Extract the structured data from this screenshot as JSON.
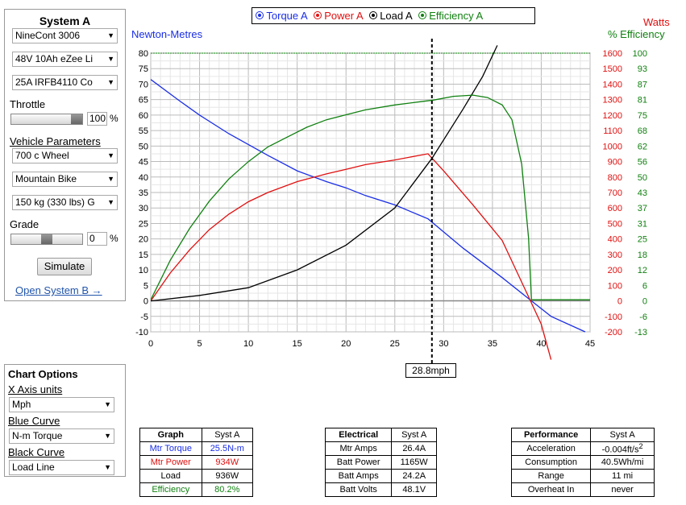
{
  "system_a": {
    "title": "System A",
    "controller": "NineCont 3006",
    "battery": "48V 10Ah eZee Li",
    "motor": "25A IRFB4110 Co",
    "throttle_label": "Throttle",
    "throttle_value": "100",
    "throttle_level": 1.0,
    "percent_sign": "%",
    "vehicle_label": "Vehicle Parameters",
    "wheel": "700 c  Wheel",
    "bike_type": "Mountain Bike",
    "weight": "150 kg (330 lbs) G",
    "grade_label": "Grade",
    "grade_value": "0",
    "grade_level": 0.5,
    "simulate_label": "Simulate",
    "open_b_label": "Open System B →"
  },
  "chart_options": {
    "title": "Chart Options",
    "x_axis_label": "X Axis units",
    "x_axis_value": "Mph",
    "blue_label": "Blue Curve",
    "blue_value": "N-m Torque",
    "black_label": "Black Curve",
    "black_value": "Load Line"
  },
  "legend": {
    "torque": "Torque A",
    "power": "Power A",
    "load": "Load A",
    "efficiency": "Efficiency A"
  },
  "axes": {
    "left_title": "Newton-Metres",
    "right_title_watts": "Watts",
    "right_title_eff": "% Efficiency",
    "x_readout": "28.8mph"
  },
  "colors": {
    "torque": "#1a2ee6",
    "power": "#e01010",
    "load": "#000000",
    "efficiency": "#108010"
  },
  "chart_data": {
    "type": "line",
    "x_unit": "mph",
    "xlim": [
      0,
      45
    ],
    "x_ticks": [
      0,
      5,
      10,
      15,
      20,
      25,
      30,
      35,
      40,
      45
    ],
    "y_left_lim": [
      -10,
      80
    ],
    "y_left_ticks": [
      80,
      75,
      70,
      65,
      60,
      55,
      50,
      45,
      40,
      35,
      30,
      25,
      20,
      15,
      10,
      5,
      0,
      -5,
      -10
    ],
    "y_watts_ticks": [
      1600,
      1500,
      1400,
      1300,
      1200,
      1100,
      1000,
      900,
      800,
      700,
      600,
      500,
      400,
      300,
      200,
      100,
      0,
      -100,
      -200
    ],
    "y_eff_ticks": [
      100,
      93,
      87,
      81,
      75,
      68,
      62,
      56,
      50,
      43,
      37,
      31,
      25,
      18,
      12,
      6,
      0,
      -6,
      -13
    ],
    "cursor_x": 28.8,
    "grid": true,
    "series": [
      {
        "name": "Torque A",
        "axis": "nm",
        "color": "#1a2ee6",
        "points": [
          [
            0,
            71.5
          ],
          [
            3,
            64.5
          ],
          [
            5,
            60
          ],
          [
            8,
            54
          ],
          [
            10,
            50.5
          ],
          [
            12,
            47
          ],
          [
            15,
            42
          ],
          [
            18,
            38.5
          ],
          [
            20,
            36.5
          ],
          [
            22,
            34
          ],
          [
            25,
            31
          ],
          [
            28.4,
            26.5
          ],
          [
            32,
            17
          ],
          [
            36,
            7.5
          ],
          [
            39,
            0
          ],
          [
            41,
            -5
          ],
          [
            44.5,
            -10
          ]
        ]
      },
      {
        "name": "Power A",
        "axis": "watts",
        "color": "#e01010",
        "points": [
          [
            0,
            0
          ],
          [
            2,
            180
          ],
          [
            4,
            330
          ],
          [
            6,
            460
          ],
          [
            8,
            560
          ],
          [
            10,
            640
          ],
          [
            12,
            700
          ],
          [
            15,
            770
          ],
          [
            18,
            820
          ],
          [
            20,
            850
          ],
          [
            22,
            880
          ],
          [
            25,
            910
          ],
          [
            28.4,
            950
          ],
          [
            30,
            840
          ],
          [
            33,
            620
          ],
          [
            36,
            390
          ],
          [
            38.9,
            0
          ],
          [
            40,
            -150
          ],
          [
            41,
            -380
          ]
        ]
      },
      {
        "name": "Load A",
        "axis": "watts",
        "color": "#000000",
        "points": [
          [
            0,
            0
          ],
          [
            5,
            35
          ],
          [
            10,
            85
          ],
          [
            15,
            200
          ],
          [
            20,
            360
          ],
          [
            25,
            600
          ],
          [
            28.8,
            920
          ],
          [
            32,
            1240
          ],
          [
            34,
            1450
          ],
          [
            35.5,
            1650
          ]
        ]
      },
      {
        "name": "Efficiency A",
        "axis": "eff",
        "color": "#108010",
        "points": [
          [
            0,
            0
          ],
          [
            2,
            16
          ],
          [
            4,
            29
          ],
          [
            6,
            40
          ],
          [
            8,
            49
          ],
          [
            10,
            56
          ],
          [
            12,
            62
          ],
          [
            14,
            66
          ],
          [
            16,
            70
          ],
          [
            18,
            73
          ],
          [
            20,
            75
          ],
          [
            22,
            77
          ],
          [
            25,
            79
          ],
          [
            28,
            80.5
          ],
          [
            29,
            81
          ],
          [
            31,
            82.5
          ],
          [
            33,
            83
          ],
          [
            34.5,
            82
          ],
          [
            36,
            79
          ],
          [
            37,
            73
          ],
          [
            38,
            55
          ],
          [
            38.7,
            25
          ],
          [
            39,
            0
          ],
          [
            45,
            0
          ]
        ]
      }
    ]
  },
  "graph_table": {
    "headers": [
      "Graph",
      "Syst A"
    ],
    "rows": [
      {
        "label": "Mtr Torque",
        "value": "25.5N-m",
        "cls": "blue"
      },
      {
        "label": "Mtr Power",
        "value": "934W",
        "cls": "red"
      },
      {
        "label": "Load",
        "value": "936W",
        "cls": ""
      },
      {
        "label": "Efficiency",
        "value": "80.2%",
        "cls": "green"
      }
    ]
  },
  "electrical_table": {
    "headers": [
      "Electrical",
      "Syst A"
    ],
    "rows": [
      {
        "label": "Mtr Amps",
        "value": "26.4A"
      },
      {
        "label": "Batt Power",
        "value": "1165W"
      },
      {
        "label": "Batt Amps",
        "value": "24.2A"
      },
      {
        "label": "Batt Volts",
        "value": "48.1V"
      }
    ]
  },
  "performance_table": {
    "headers": [
      "Performance",
      "Syst A"
    ],
    "rows": [
      {
        "label": "Acceleration",
        "value": "-0.004ft/s",
        "sup": "2"
      },
      {
        "label": "Consumption",
        "value": "40.5Wh/mi"
      },
      {
        "label": "Range",
        "value": "11 mi"
      },
      {
        "label": "Overheat In",
        "value": "never"
      }
    ]
  }
}
